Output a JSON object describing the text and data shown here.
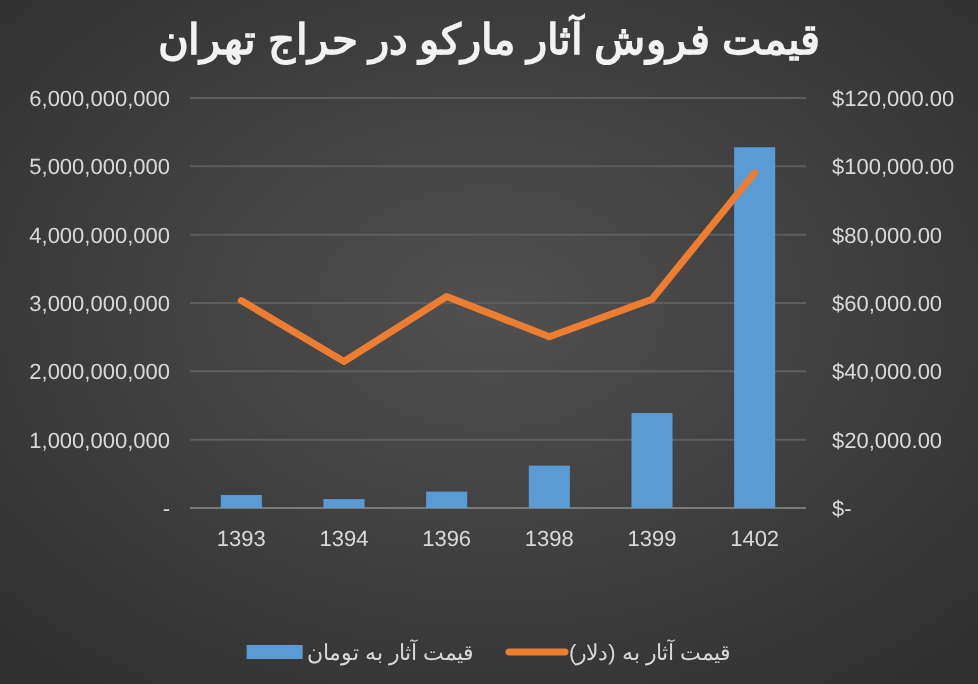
{
  "chart_data": {
    "type": "bar",
    "title": "قیمت فروش آثار مارکو در حراج تهران",
    "categories": [
      "1393",
      "1394",
      "1396",
      "1398",
      "1399",
      "1402"
    ],
    "series": [
      {
        "name": "قیمت آثار به تومان",
        "color": "#5b9bd5",
        "values": [
          190000000,
          130000000,
          240000000,
          620000000,
          1390000000,
          5280000000
        ]
      },
      {
        "name": "قیمت آثار به (دلار)",
        "type": "line",
        "axis": "y2",
        "color": "#ed7d31",
        "values": [
          60700,
          42900,
          61900,
          50100,
          61100,
          98100
        ]
      }
    ],
    "ylim": [
      0,
      6000000000
    ],
    "yticks": [
      {
        "value": 0,
        "label": "-"
      },
      {
        "value": 1000000000,
        "label": "1,000,000,000"
      },
      {
        "value": 2000000000,
        "label": "2,000,000,000"
      },
      {
        "value": 3000000000,
        "label": "3,000,000,000"
      },
      {
        "value": 4000000000,
        "label": "4,000,000,000"
      },
      {
        "value": 5000000000,
        "label": "5,000,000,000"
      },
      {
        "value": 6000000000,
        "label": "6,000,000,000"
      }
    ],
    "y2lim": [
      0,
      120000
    ],
    "y2ticks": [
      {
        "value": 0,
        "label": "$-"
      },
      {
        "value": 20000,
        "label": "$20,000.00"
      },
      {
        "value": 40000,
        "label": "$40,000.00"
      },
      {
        "value": 60000,
        "label": "$60,000.00"
      },
      {
        "value": 80000,
        "label": "$80,000.00"
      },
      {
        "value": 100000,
        "label": "$100,000.00"
      },
      {
        "value": 120000,
        "label": "$120,000.00"
      }
    ],
    "grid": "y",
    "legend": "bottom"
  }
}
